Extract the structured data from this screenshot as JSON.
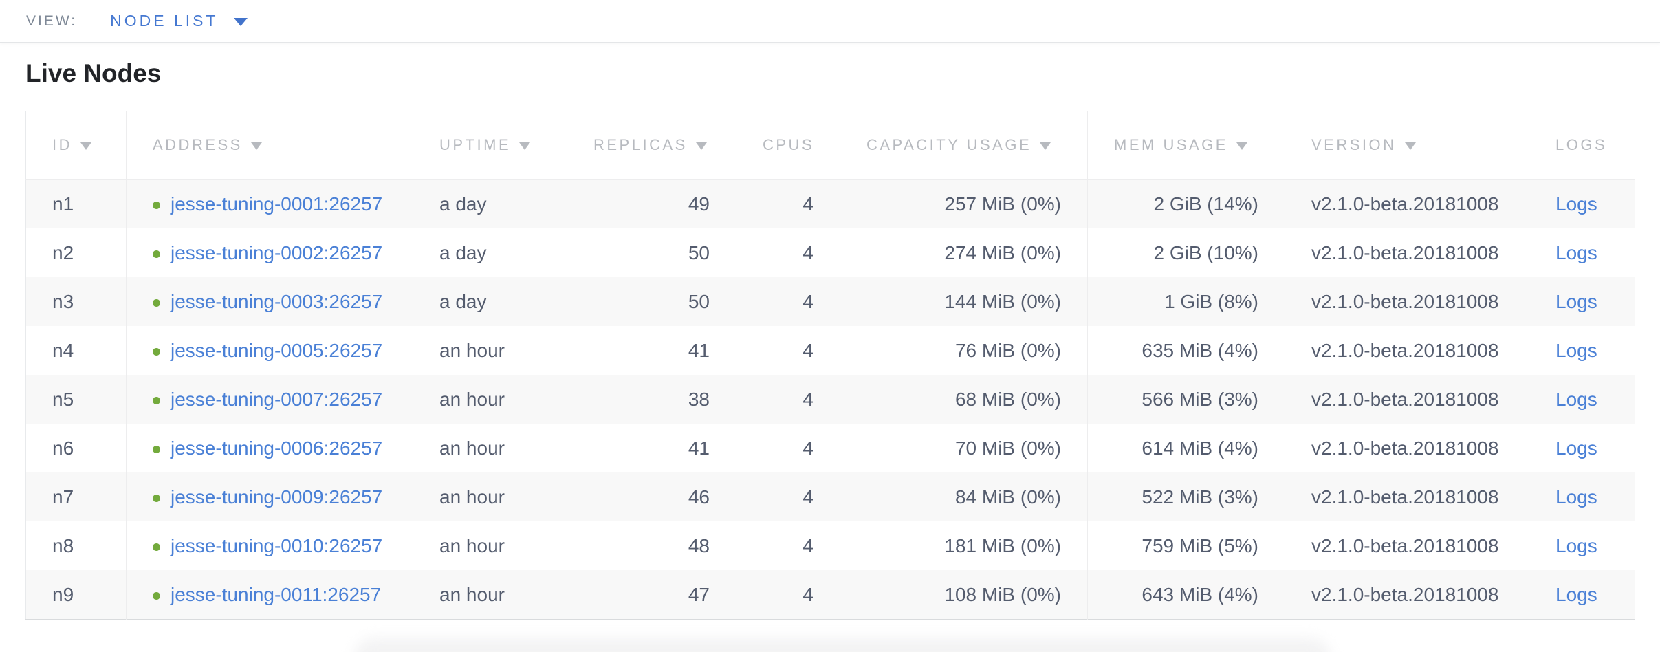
{
  "view_bar": {
    "label": "VIEW:",
    "selected": "NODE LIST"
  },
  "section": {
    "title": "Live Nodes"
  },
  "table": {
    "columns": [
      {
        "key": "id",
        "label": "ID",
        "sortable": true,
        "align": "left"
      },
      {
        "key": "address",
        "label": "ADDRESS",
        "sortable": true,
        "align": "left"
      },
      {
        "key": "uptime",
        "label": "UPTIME",
        "sortable": true,
        "align": "left"
      },
      {
        "key": "replicas",
        "label": "REPLICAS",
        "sortable": true,
        "align": "right"
      },
      {
        "key": "cpus",
        "label": "CPUS",
        "sortable": false,
        "align": "right"
      },
      {
        "key": "capacity_usage",
        "label": "CAPACITY USAGE",
        "sortable": true,
        "align": "right"
      },
      {
        "key": "mem_usage",
        "label": "MEM USAGE",
        "sortable": true,
        "align": "right"
      },
      {
        "key": "version",
        "label": "VERSION",
        "sortable": true,
        "align": "left"
      },
      {
        "key": "logs",
        "label": "LOGS",
        "sortable": false,
        "align": "left"
      }
    ],
    "rows": [
      {
        "id": "n1",
        "status": "live",
        "address": "jesse-tuning-0001:26257",
        "uptime": "a day",
        "replicas": "49",
        "cpus": "4",
        "capacity_usage": "257 MiB (0%)",
        "mem_usage": "2 GiB (14%)",
        "version": "v2.1.0-beta.20181008",
        "logs": "Logs"
      },
      {
        "id": "n2",
        "status": "live",
        "address": "jesse-tuning-0002:26257",
        "uptime": "a day",
        "replicas": "50",
        "cpus": "4",
        "capacity_usage": "274 MiB (0%)",
        "mem_usage": "2 GiB (10%)",
        "version": "v2.1.0-beta.20181008",
        "logs": "Logs"
      },
      {
        "id": "n3",
        "status": "live",
        "address": "jesse-tuning-0003:26257",
        "uptime": "a day",
        "replicas": "50",
        "cpus": "4",
        "capacity_usage": "144 MiB (0%)",
        "mem_usage": "1 GiB (8%)",
        "version": "v2.1.0-beta.20181008",
        "logs": "Logs"
      },
      {
        "id": "n4",
        "status": "live",
        "address": "jesse-tuning-0005:26257",
        "uptime": "an hour",
        "replicas": "41",
        "cpus": "4",
        "capacity_usage": "76 MiB (0%)",
        "mem_usage": "635 MiB (4%)",
        "version": "v2.1.0-beta.20181008",
        "logs": "Logs"
      },
      {
        "id": "n5",
        "status": "live",
        "address": "jesse-tuning-0007:26257",
        "uptime": "an hour",
        "replicas": "38",
        "cpus": "4",
        "capacity_usage": "68 MiB (0%)",
        "mem_usage": "566 MiB (3%)",
        "version": "v2.1.0-beta.20181008",
        "logs": "Logs"
      },
      {
        "id": "n6",
        "status": "live",
        "address": "jesse-tuning-0006:26257",
        "uptime": "an hour",
        "replicas": "41",
        "cpus": "4",
        "capacity_usage": "70 MiB (0%)",
        "mem_usage": "614 MiB (4%)",
        "version": "v2.1.0-beta.20181008",
        "logs": "Logs"
      },
      {
        "id": "n7",
        "status": "live",
        "address": "jesse-tuning-0009:26257",
        "uptime": "an hour",
        "replicas": "46",
        "cpus": "4",
        "capacity_usage": "84 MiB (0%)",
        "mem_usage": "522 MiB (3%)",
        "version": "v2.1.0-beta.20181008",
        "logs": "Logs"
      },
      {
        "id": "n8",
        "status": "live",
        "address": "jesse-tuning-0010:26257",
        "uptime": "an hour",
        "replicas": "48",
        "cpus": "4",
        "capacity_usage": "181 MiB (0%)",
        "mem_usage": "759 MiB (5%)",
        "version": "v2.1.0-beta.20181008",
        "logs": "Logs"
      },
      {
        "id": "n9",
        "status": "live",
        "address": "jesse-tuning-0011:26257",
        "uptime": "an hour",
        "replicas": "47",
        "cpus": "4",
        "capacity_usage": "108 MiB (0%)",
        "mem_usage": "643 MiB (4%)",
        "version": "v2.1.0-beta.20181008",
        "logs": "Logs"
      }
    ]
  },
  "colors": {
    "accent_blue": "#4578d1",
    "link_blue": "#4a80d6",
    "node_live_green": "#73aa3c",
    "header_text_gray": "#b7babf",
    "body_text_slate": "#545c6e",
    "zebra_row": "#f8f8f8"
  }
}
